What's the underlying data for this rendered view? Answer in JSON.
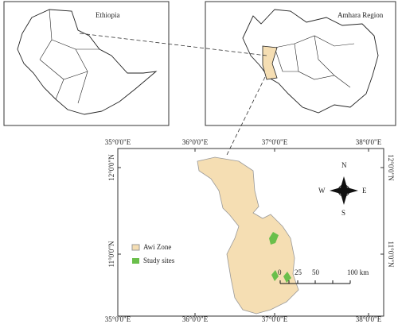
{
  "inset_ethiopia": {
    "title": "Ethiopia"
  },
  "inset_amhara": {
    "title": "Amhara Region"
  },
  "main_map": {
    "top_labels": [
      "35°0'0\"E",
      "36°0'0\"E",
      "37°0'0\"E",
      "38°0'0\"E"
    ],
    "bottom_labels": [
      "35°0'0\"E",
      "36°0'0\"E",
      "37°0'0\"E",
      "38°0'0\"E"
    ],
    "left_labels": [
      "12°0'0\"N",
      "11°0'0\"N"
    ],
    "right_labels": [
      "12°0'0\"N",
      "11°0'0\"N"
    ],
    "legend": [
      "Awi Zone",
      "Study sites"
    ],
    "compass": {
      "north": "N",
      "south": "S",
      "east": "E",
      "west": "W"
    },
    "scale_bar": [
      "0",
      "25",
      "50",
      "100 km"
    ]
  }
}
